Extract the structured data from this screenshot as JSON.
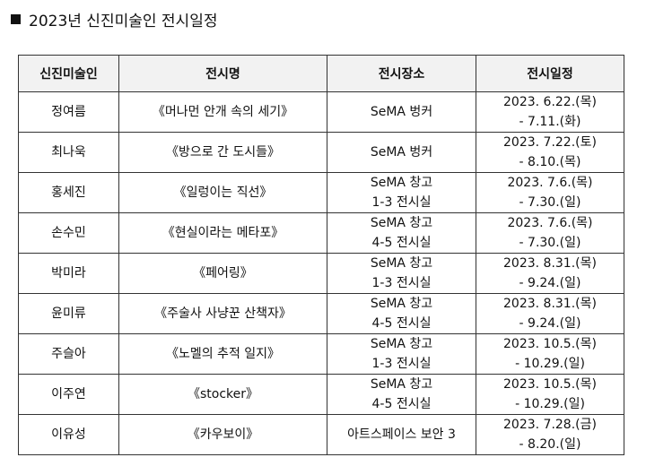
{
  "page": {
    "title": "2023년 신진미술인 전시일정"
  },
  "table": {
    "headers": [
      "신진미술인",
      "전시명",
      "전시장소",
      "전시일정"
    ],
    "rows": [
      {
        "artist": "정여름",
        "title": "《머나먼 안개 속의 세기》",
        "venue_1": "SeMA 벙커",
        "venue_2": "",
        "date_1": "2023. 6.22.(목)",
        "date_2": "- 7.11.(화)"
      },
      {
        "artist": "최나욱",
        "title": "《방으로 간 도시들》",
        "venue_1": "SeMA 벙커",
        "venue_2": "",
        "date_1": "2023. 7.22.(토)",
        "date_2": "- 8.10.(목)"
      },
      {
        "artist": "홍세진",
        "title": "《일렁이는 직선》",
        "venue_1": "SeMA 창고",
        "venue_2": "1-3 전시실",
        "date_1": "2023. 7.6.(목)",
        "date_2": "- 7.30.(일)"
      },
      {
        "artist": "손수민",
        "title": "《현실이라는 메타포》",
        "venue_1": "SeMA 창고",
        "venue_2": "4-5 전시실",
        "date_1": "2023. 7.6.(목)",
        "date_2": "- 7.30.(일)"
      },
      {
        "artist": "박미라",
        "title": "《페어링》",
        "venue_1": "SeMA 창고",
        "venue_2": "1-3 전시실",
        "date_1": "2023. 8.31.(목)",
        "date_2": "- 9.24.(일)"
      },
      {
        "artist": "윤미류",
        "title": "《주술사 사냥꾼 산책자》",
        "venue_1": "SeMA 창고",
        "venue_2": "4-5 전시실",
        "date_1": "2023. 8.31.(목)",
        "date_2": "- 9.24.(일)"
      },
      {
        "artist": "주슬아",
        "title": "《노멜의 추적 일지》",
        "venue_1": "SeMA 창고",
        "venue_2": "1-3 전시실",
        "date_1": "2023. 10.5.(목)",
        "date_2": "- 10.29.(일)"
      },
      {
        "artist": "이주연",
        "title": "《stocker》",
        "venue_1": "SeMA 창고",
        "venue_2": "4-5 전시실",
        "date_1": "2023. 10.5.(목)",
        "date_2": "- 10.29.(일)"
      },
      {
        "artist": "이유성",
        "title": "《카우보이》",
        "venue_1": "아트스페이스 보안 3",
        "venue_2": "",
        "date_1": "2023. 7.28.(금)",
        "date_2": "- 8.20.(일)"
      }
    ]
  }
}
